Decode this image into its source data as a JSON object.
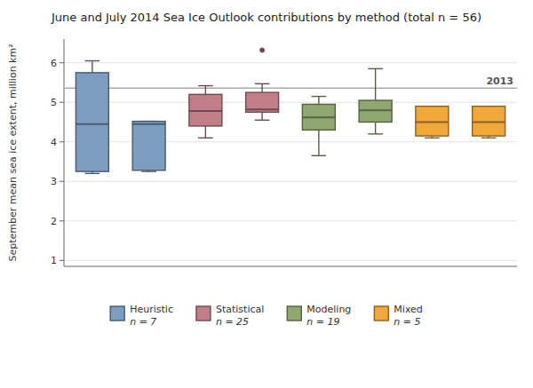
{
  "chart_data": {
    "type": "box",
    "title": "June and July 2014 Sea Ice Outlook contributions by method (total n = 56)",
    "y_label": "September mean sea ice extent, million km²",
    "ylim": [
      0.85,
      6.6
    ],
    "yticks": [
      1,
      2,
      3,
      4,
      5,
      6
    ],
    "grid": true,
    "legend": "bottom",
    "tick_labels": "y",
    "annotations": [
      {
        "text": "2013",
        "y": 5.36
      }
    ],
    "series": [
      {
        "name": "Heuristic",
        "n_label": "n = 7",
        "color": "#7b9dbf",
        "values": [
          {
            "whislo": 3.2,
            "q1": 3.25,
            "med": 4.45,
            "q3": 5.75,
            "whishi": 6.05,
            "fliers": []
          },
          {
            "whislo": 3.25,
            "q1": 3.28,
            "med": 4.45,
            "q3": 4.52,
            "whishi": 4.52,
            "fliers": []
          }
        ]
      },
      {
        "name": "Statistical",
        "n_label": "n = 25",
        "color": "#bf7e88",
        "values": [
          {
            "whislo": 4.1,
            "q1": 4.4,
            "med": 4.78,
            "q3": 5.2,
            "whishi": 5.42,
            "fliers": []
          },
          {
            "whislo": 4.55,
            "q1": 4.75,
            "med": 4.82,
            "q3": 5.25,
            "whishi": 5.47,
            "fliers": [
              6.32
            ]
          }
        ]
      },
      {
        "name": "Modeling",
        "n_label": "n = 19",
        "color": "#8fa870",
        "values": [
          {
            "whislo": 3.65,
            "q1": 4.3,
            "med": 4.62,
            "q3": 4.95,
            "whishi": 5.15,
            "fliers": []
          },
          {
            "whislo": 4.2,
            "q1": 4.5,
            "med": 4.8,
            "q3": 5.05,
            "whishi": 5.85,
            "fliers": []
          }
        ]
      },
      {
        "name": "Mixed",
        "n_label": "n = 5",
        "color": "#f0a83a",
        "values": [
          {
            "whislo": 4.1,
            "q1": 4.15,
            "med": 4.5,
            "q3": 4.9,
            "whishi": 4.9,
            "fliers": []
          },
          {
            "whislo": 4.1,
            "q1": 4.15,
            "med": 4.5,
            "q3": 4.9,
            "whishi": 4.9,
            "fliers": []
          }
        ]
      }
    ]
  }
}
